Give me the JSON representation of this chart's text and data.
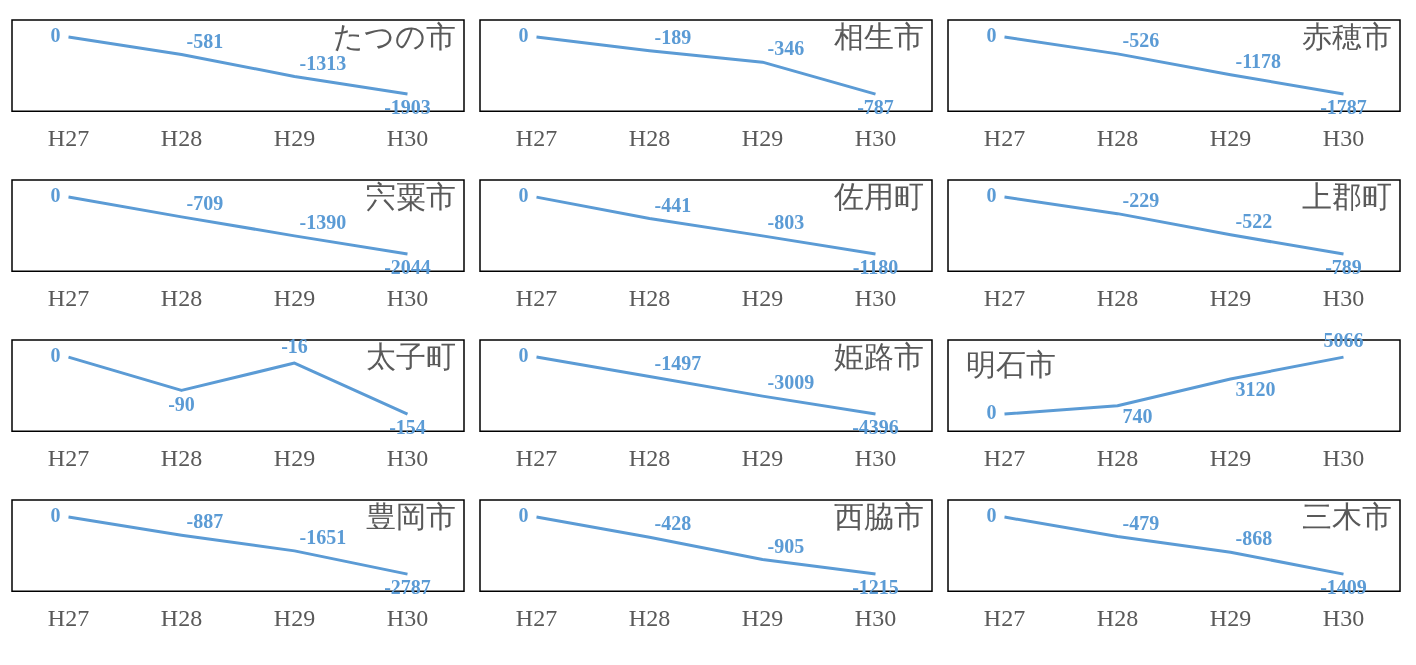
{
  "chart_data": [
    {
      "type": "line",
      "title": "たつの市",
      "categories": [
        "H27",
        "H28",
        "H29",
        "H30"
      ],
      "values": [
        0,
        -581,
        -1313,
        -1903
      ],
      "color": "#5b9bd5",
      "data_labels": true,
      "tick_labels": "x",
      "grid": false,
      "legend": false,
      "marker": "none"
    },
    {
      "type": "line",
      "title": "相生市",
      "categories": [
        "H27",
        "H28",
        "H29",
        "H30"
      ],
      "values": [
        0,
        -189,
        -346,
        -787
      ],
      "color": "#5b9bd5",
      "data_labels": true,
      "tick_labels": "x",
      "grid": false,
      "legend": false,
      "marker": "none"
    },
    {
      "type": "line",
      "title": "赤穂市",
      "categories": [
        "H27",
        "H28",
        "H29",
        "H30"
      ],
      "values": [
        0,
        -526,
        -1178,
        -1787
      ],
      "color": "#5b9bd5",
      "data_labels": true,
      "tick_labels": "x",
      "grid": false,
      "legend": false,
      "marker": "none"
    },
    {
      "type": "line",
      "title": "宍粟市",
      "categories": [
        "H27",
        "H28",
        "H29",
        "H30"
      ],
      "values": [
        0,
        -709,
        -1390,
        -2044
      ],
      "color": "#5b9bd5",
      "data_labels": true,
      "tick_labels": "x",
      "grid": false,
      "legend": false,
      "marker": "none"
    },
    {
      "type": "line",
      "title": "佐用町",
      "categories": [
        "H27",
        "H28",
        "H29",
        "H30"
      ],
      "values": [
        0,
        -441,
        -803,
        -1180
      ],
      "color": "#5b9bd5",
      "data_labels": true,
      "tick_labels": "x",
      "grid": false,
      "legend": false,
      "marker": "none"
    },
    {
      "type": "line",
      "title": "上郡町",
      "categories": [
        "H27",
        "H28",
        "H29",
        "H30"
      ],
      "values": [
        0,
        -229,
        -522,
        -789
      ],
      "color": "#5b9bd5",
      "data_labels": true,
      "tick_labels": "x",
      "grid": false,
      "legend": false,
      "marker": "none"
    },
    {
      "type": "line",
      "title": "太子町",
      "categories": [
        "H27",
        "H28",
        "H29",
        "H30"
      ],
      "values": [
        0,
        -90,
        -16,
        -154
      ],
      "color": "#5b9bd5",
      "data_labels": true,
      "tick_labels": "x",
      "grid": false,
      "legend": false,
      "marker": "none"
    },
    {
      "type": "line",
      "title": "姫路市",
      "categories": [
        "H27",
        "H28",
        "H29",
        "H30"
      ],
      "values": [
        0,
        -1497,
        -3009,
        -4396
      ],
      "color": "#5b9bd5",
      "data_labels": true,
      "tick_labels": "x",
      "grid": false,
      "legend": false,
      "marker": "none"
    },
    {
      "type": "line",
      "title": "明石市",
      "categories": [
        "H27",
        "H28",
        "H29",
        "H30"
      ],
      "values": [
        0,
        740,
        3120,
        5066
      ],
      "color": "#5b9bd5",
      "data_labels": true,
      "tick_labels": "x",
      "grid": false,
      "legend": false,
      "marker": "none"
    },
    {
      "type": "line",
      "title": "豊岡市",
      "categories": [
        "H27",
        "H28",
        "H29",
        "H30"
      ],
      "values": [
        0,
        -887,
        -1651,
        -2787
      ],
      "color": "#5b9bd5",
      "data_labels": true,
      "tick_labels": "x",
      "grid": false,
      "legend": false,
      "marker": "none"
    },
    {
      "type": "line",
      "title": "西脇市",
      "categories": [
        "H27",
        "H28",
        "H29",
        "H30"
      ],
      "values": [
        0,
        -428,
        -905,
        -1215
      ],
      "color": "#5b9bd5",
      "data_labels": true,
      "tick_labels": "x",
      "grid": false,
      "legend": false,
      "marker": "none"
    },
    {
      "type": "line",
      "title": "三木市",
      "categories": [
        "H27",
        "H28",
        "H29",
        "H30"
      ],
      "values": [
        0,
        -479,
        -868,
        -1409
      ],
      "color": "#5b9bd5",
      "data_labels": true,
      "tick_labels": "x",
      "grid": false,
      "legend": false,
      "marker": "none"
    }
  ]
}
